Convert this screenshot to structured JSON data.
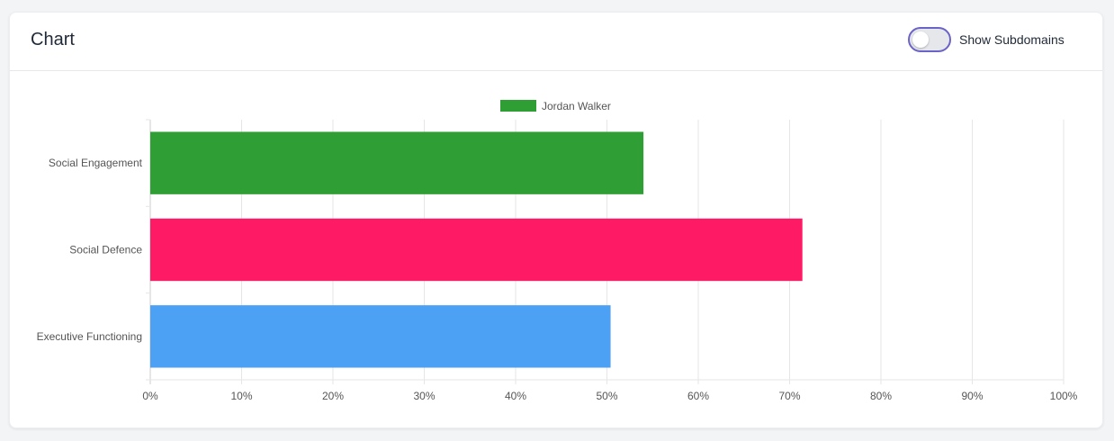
{
  "header": {
    "title": "Chart",
    "toggle_label": "Show Subdomains",
    "toggle_on": false
  },
  "chart_data": {
    "type": "bar",
    "orientation": "horizontal",
    "categories": [
      "Social Engagement",
      "Social Defence",
      "Executive Functioning"
    ],
    "series": [
      {
        "name": "Jordan Walker",
        "values": [
          54,
          71.4,
          50.4
        ]
      }
    ],
    "bar_colors": [
      "#2f9e34",
      "#ff1a66",
      "#4da1f5"
    ],
    "legend_color": "#2f9e34",
    "xlim": [
      0,
      100
    ],
    "xticks": [
      "0%",
      "10%",
      "20%",
      "30%",
      "40%",
      "50%",
      "60%",
      "70%",
      "80%",
      "90%",
      "100%"
    ],
    "grid": true,
    "legend": "top"
  }
}
